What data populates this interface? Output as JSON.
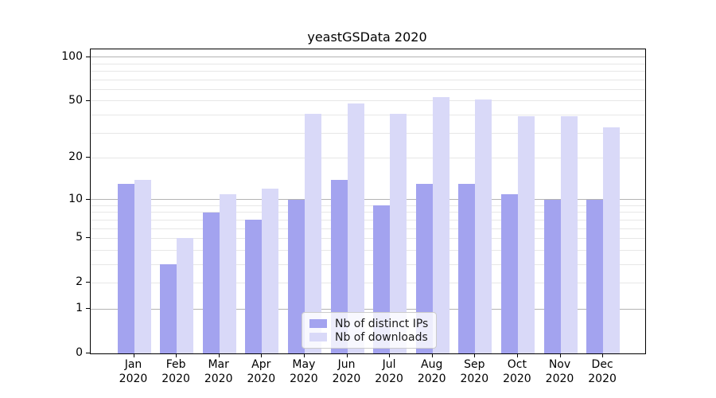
{
  "chart_data": {
    "type": "bar",
    "title": "yeastGSData 2020",
    "categories": [
      "Jan",
      "Feb",
      "Mar",
      "Apr",
      "May",
      "Jun",
      "Jul",
      "Aug",
      "Sep",
      "Oct",
      "Nov",
      "Dec"
    ],
    "category_year_suffix": "2020",
    "series": [
      {
        "name": "Nb of distinct IPs",
        "color": "#a3a3ef",
        "values": [
          13,
          3,
          8,
          7,
          10,
          14,
          9,
          13,
          13,
          11,
          10,
          10
        ]
      },
      {
        "name": "Nb of downloads",
        "color": "#d9d9f8",
        "values": [
          14,
          5,
          11,
          12,
          41,
          48,
          41,
          53,
          51,
          39,
          39,
          33
        ]
      }
    ],
    "xlabel": "",
    "ylabel": "",
    "yscale": "log1p",
    "ylim": [
      0,
      113
    ],
    "yticks": [
      0,
      1,
      2,
      5,
      10,
      20,
      50,
      100
    ],
    "major_gridlines": [
      1,
      10,
      100
    ],
    "minor_gridlines": [
      2,
      3,
      4,
      5,
      6,
      7,
      8,
      9,
      20,
      30,
      40,
      50,
      60,
      70,
      80,
      90
    ],
    "grid": "on",
    "legend_position": "lower center"
  },
  "colors": {
    "axis": "#000000",
    "major_grid": "#b3b3b3",
    "minor_grid": "#e7e7e7",
    "background": "#ffffff"
  }
}
